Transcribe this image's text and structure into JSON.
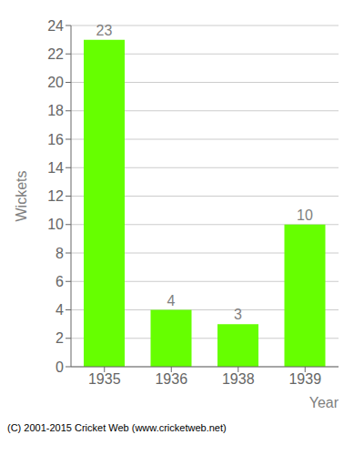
{
  "chart_data": {
    "type": "bar",
    "categories": [
      "1935",
      "1936",
      "1938",
      "1939"
    ],
    "values": [
      23,
      4,
      3,
      10
    ],
    "color": "#66ff00",
    "xlabel": "Year",
    "ylabel": "Wickets",
    "ylim": [
      0,
      24
    ],
    "yticks": [
      0,
      2,
      4,
      6,
      8,
      10,
      12,
      14,
      16,
      18,
      20,
      22,
      24
    ],
    "grid": true,
    "data_labels": true,
    "annotations": [
      "(C) 2001-2015 Cricket Web (www.cricketweb.net)"
    ]
  }
}
